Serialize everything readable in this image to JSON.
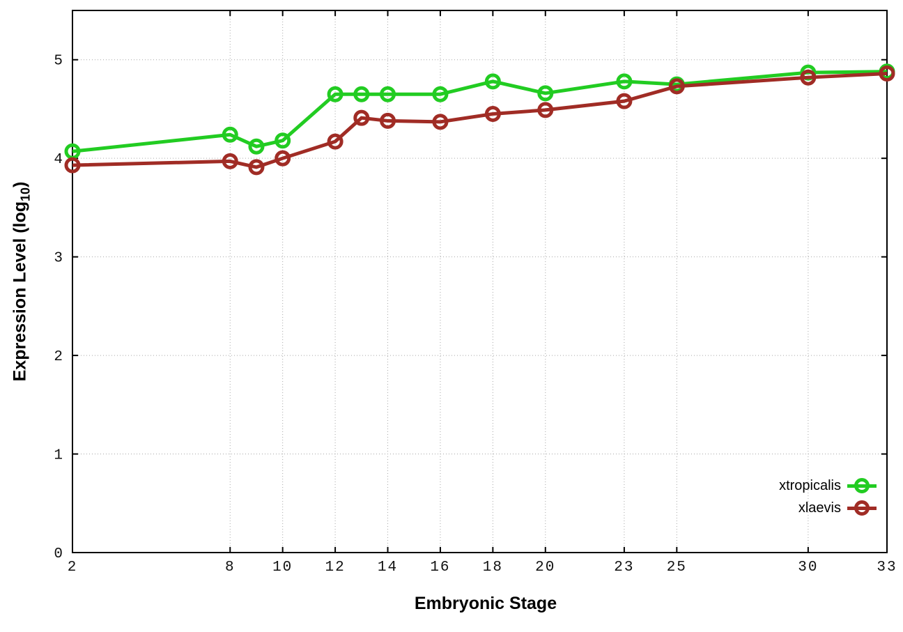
{
  "chart_data": {
    "type": "line",
    "title": "",
    "xlabel": "Embryonic Stage",
    "ylabel": "Expression Level (log10)",
    "ylabel_parts": {
      "main": "Expression Level (log",
      "sub": "10",
      "end": ")"
    },
    "x": [
      2,
      8,
      9,
      10,
      12,
      13,
      14,
      16,
      18,
      20,
      23,
      25,
      30,
      33
    ],
    "series": [
      {
        "name": "xtropicalis",
        "color": "#22cc22",
        "values": [
          4.07,
          4.24,
          4.12,
          4.18,
          4.65,
          4.65,
          4.65,
          4.65,
          4.78,
          4.66,
          4.78,
          4.75,
          4.87,
          4.88
        ]
      },
      {
        "name": "xlaevis",
        "color": "#a02c25",
        "values": [
          3.93,
          3.97,
          3.91,
          4.0,
          4.17,
          4.41,
          4.38,
          4.37,
          4.45,
          4.49,
          4.58,
          4.73,
          4.82,
          4.86
        ]
      }
    ],
    "xticks": [
      2,
      8,
      10,
      12,
      14,
      16,
      18,
      20,
      23,
      25,
      30,
      33
    ],
    "yticks": [
      0,
      1,
      2,
      3,
      4,
      5
    ],
    "xlim": [
      2,
      33
    ],
    "ylim": [
      0,
      5.5
    ],
    "grid": true,
    "legend_position": "bottom-right",
    "background": "#ffffff",
    "grid_color": "#a6a6a6",
    "border_color": "#000000",
    "tick_label_color": "#111111"
  }
}
